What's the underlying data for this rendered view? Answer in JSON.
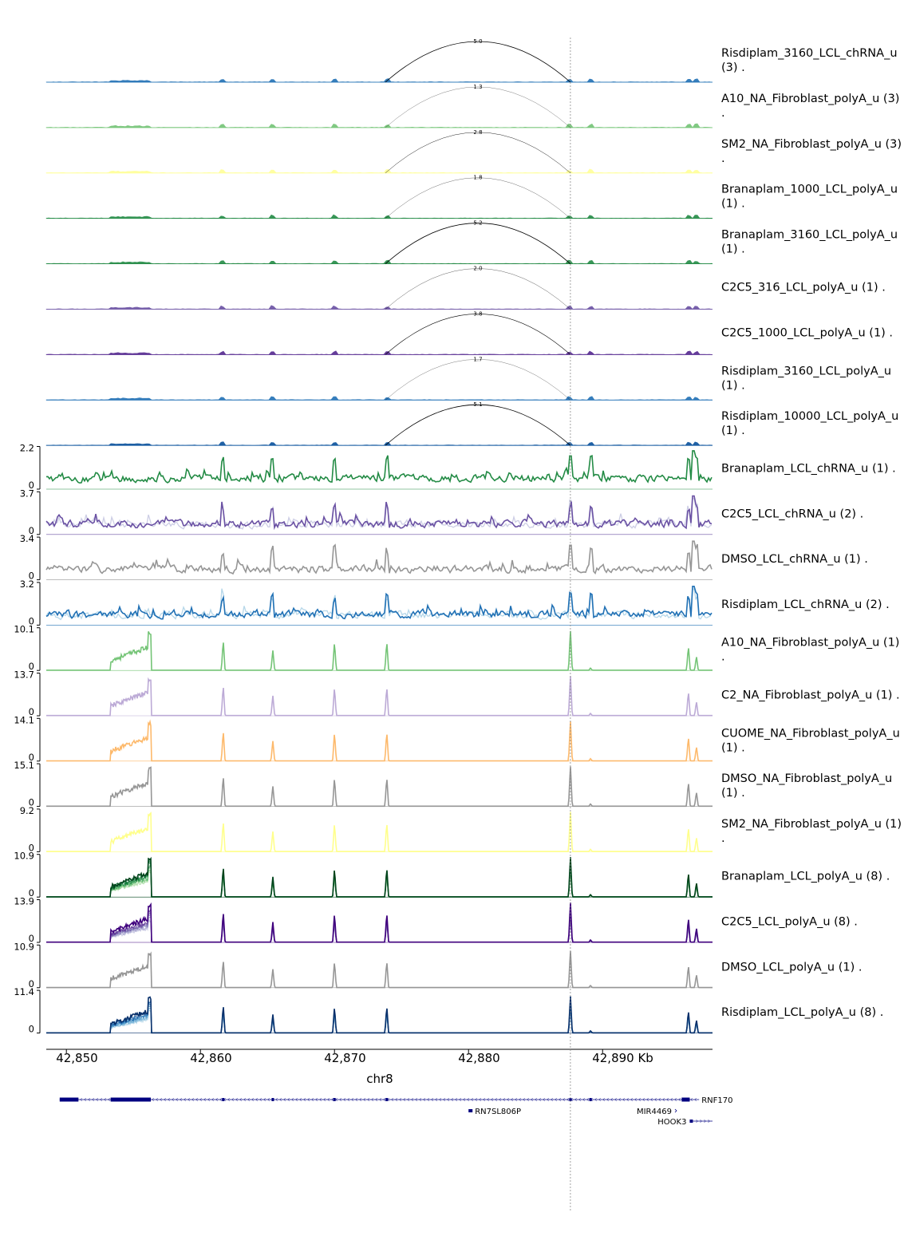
{
  "chart_data": {
    "type": "genome-browser",
    "chromosome": "chr8",
    "xlim_kb": [
      42848.5,
      42898.2
    ],
    "x_ticks": [
      {
        "value": 42850,
        "label": "42,850"
      },
      {
        "value": 42860,
        "label": "42,860"
      },
      {
        "value": 42870,
        "label": "42,870"
      },
      {
        "value": 42880,
        "label": "42,880"
      },
      {
        "value": 42890,
        "label": "42,890 Kb"
      }
    ],
    "highlight_position_kb": 42887.6,
    "junction": {
      "start_kb": 42873.8,
      "end_kb": 42887.6
    },
    "sashimi_tracks": [
      {
        "label": [
          "Risdiplam_3160_LCL_chRNA_u",
          "(3) ."
        ],
        "junction_count": "5.0",
        "color": "#2171b5"
      },
      {
        "label": [
          "A10_NA_Fibroblast_polyA_u (3)",
          "."
        ],
        "junction_count": "1.3",
        "color": "#74c476"
      },
      {
        "label": [
          "SM2_NA_Fibroblast_polyA_u (3)",
          "."
        ],
        "junction_count": "2.8",
        "color": "#ffff99"
      },
      {
        "label": [
          "Branaplam_1000_LCL_polyA_u",
          "(1) ."
        ],
        "junction_count": "1.8",
        "color": "#238b45"
      },
      {
        "label": [
          "Branaplam_3160_LCL_polyA_u",
          "(1) ."
        ],
        "junction_count": "5.2",
        "color": "#238b45"
      },
      {
        "label": [
          "C2C5_316_LCL_polyA_u (1) ."
        ],
        "junction_count": "2.0",
        "color": "#6a51a3"
      },
      {
        "label": [
          "C2C5_1000_LCL_polyA_u (1) ."
        ],
        "junction_count": "3.8",
        "color": "#54278f"
      },
      {
        "label": [
          "Risdiplam_3160_LCL_polyA_u",
          "(1) ."
        ],
        "junction_count": "1.7",
        "color": "#2171b5"
      },
      {
        "label": [
          "Risdiplam_10000_LCL_polyA_u",
          "(1) ."
        ],
        "junction_count": "5.1",
        "color": "#08519c"
      }
    ],
    "coverage_tracks": [
      {
        "label": [
          "Branaplam_LCL_chRNA_u (1) ."
        ],
        "ymax": "2.2",
        "ymin": "0",
        "kind": "chrna",
        "colors": [
          "#238b45"
        ]
      },
      {
        "label": [
          "C2C5_LCL_chRNA_u (2) ."
        ],
        "ymax": "3.7",
        "ymin": "0",
        "kind": "chrna",
        "colors": [
          "#6a51a3",
          "#bcbddc"
        ]
      },
      {
        "label": [
          "DMSO_LCL_chRNA_u (1) ."
        ],
        "ymax": "3.4",
        "ymin": "0",
        "kind": "chrna",
        "colors": [
          "#969696"
        ]
      },
      {
        "label": [
          "Risdiplam_LCL_chRNA_u (2) ."
        ],
        "ymax": "3.2",
        "ymin": "0",
        "kind": "chrna",
        "colors": [
          "#2171b5",
          "#9ecae1"
        ]
      },
      {
        "label": [
          "A10_NA_Fibroblast_polyA_u (1)",
          "."
        ],
        "ymax": "10.1",
        "ymin": "0",
        "kind": "polya",
        "colors": [
          "#74c476"
        ]
      },
      {
        "label": [
          "C2_NA_Fibroblast_polyA_u (1) ."
        ],
        "ymax": "13.7",
        "ymin": "0",
        "kind": "polya",
        "colors": [
          "#bcaad6"
        ]
      },
      {
        "label": [
          "CUOME_NA_Fibroblast_polyA_u",
          "(1) ."
        ],
        "ymax": "14.1",
        "ymin": "0",
        "kind": "polya",
        "colors": [
          "#fdb96b"
        ]
      },
      {
        "label": [
          "DMSO_NA_Fibroblast_polyA_u",
          "(1) ."
        ],
        "ymax": "15.1",
        "ymin": "0",
        "kind": "polya",
        "colors": [
          "#969696"
        ]
      },
      {
        "label": [
          "SM2_NA_Fibroblast_polyA_u (1)",
          "."
        ],
        "ymax": "9.2",
        "ymin": "0",
        "kind": "polya",
        "colors": [
          "#ffff8c"
        ]
      },
      {
        "label": [
          "Branaplam_LCL_polyA_u (8) ."
        ],
        "ymax": "10.9",
        "ymin": "0",
        "kind": "polya",
        "colors": [
          "#00441b",
          "#006d2c",
          "#238b45",
          "#41ab5d",
          "#74c476",
          "#a1d99b"
        ]
      },
      {
        "label": [
          "C2C5_LCL_polyA_u (8) ."
        ],
        "ymax": "13.9",
        "ymin": "0",
        "kind": "polya",
        "colors": [
          "#3f007d",
          "#54278f",
          "#6a51a3",
          "#807dba",
          "#9e9ac8",
          "#bcbddc"
        ]
      },
      {
        "label": [
          "DMSO_LCL_polyA_u (1) ."
        ],
        "ymax": "10.9",
        "ymin": "0",
        "kind": "polya",
        "colors": [
          "#969696"
        ]
      },
      {
        "label": [
          "Risdiplam_LCL_polyA_u (8) ."
        ],
        "ymax": "11.4",
        "ymin": "0",
        "kind": "polya",
        "colors": [
          "#08306b",
          "#08519c",
          "#2171b5",
          "#4292c6",
          "#6baed6",
          "#9ecae1"
        ]
      }
    ],
    "exon_positions_kb": [
      42861.7,
      42865.4,
      42870.0,
      42873.9,
      42887.6,
      42889.1,
      42896.4,
      42897.0
    ],
    "genes": [
      {
        "name": "RNF170",
        "start_kb": 42849.5,
        "end_kb": 42897.2,
        "strand": "-",
        "row": 0
      },
      {
        "name": "RN7SL806P",
        "start_kb": 42880.0,
        "end_kb": 42880.3,
        "strand": "+",
        "row": 1
      },
      {
        "name": "MIR4469",
        "start_kb": 42895.4,
        "end_kb": 42895.5,
        "strand": "+",
        "row": 1
      },
      {
        "name": "HOOK3",
        "start_kb": 42896.5,
        "end_kb": 42898.2,
        "strand": "+",
        "row": 2
      }
    ]
  }
}
